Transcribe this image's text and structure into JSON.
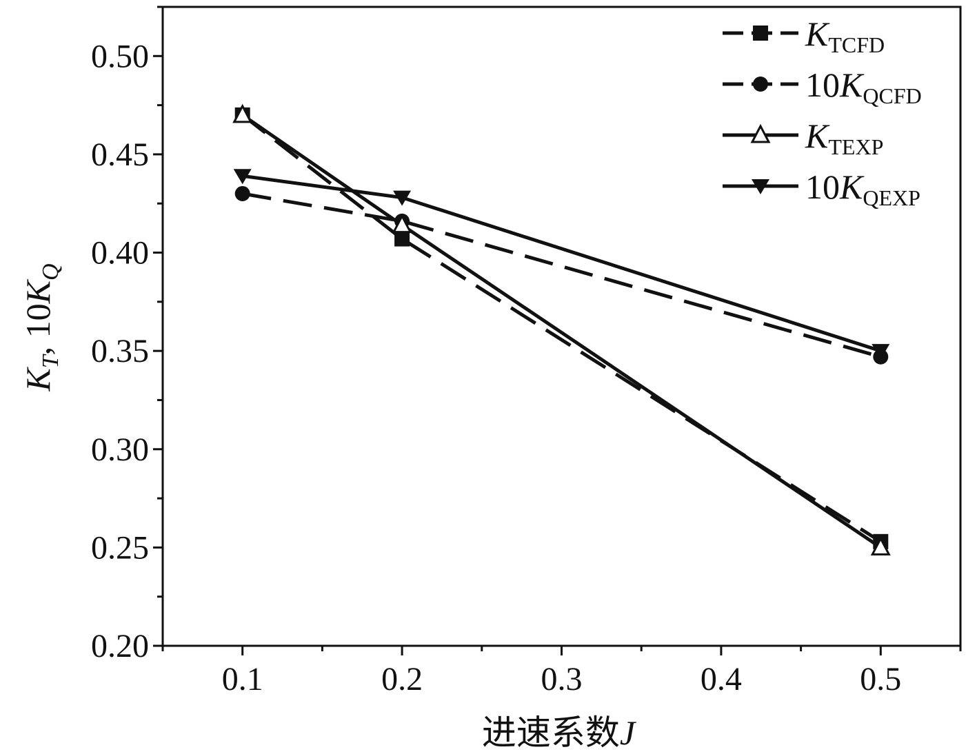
{
  "chart_data": {
    "type": "line",
    "title": "",
    "xlabel_text": "进速系数",
    "xlabel_var": "J",
    "ylabel_parts": [
      {
        "text": "K",
        "italic": true,
        "sub": false
      },
      {
        "text": "T",
        "italic": true,
        "sub": true
      },
      {
        "text": ", 10",
        "italic": false,
        "sub": false
      },
      {
        "text": "K",
        "italic": true,
        "sub": false
      },
      {
        "text": "Q",
        "italic": true,
        "sub": true
      }
    ],
    "xlim": [
      0.05,
      0.55
    ],
    "ylim": [
      0.2,
      0.525
    ],
    "xticks": [
      0.1,
      0.2,
      0.3,
      0.4,
      0.5
    ],
    "xtick_labels": [
      "0.1",
      "0.2",
      "0.3",
      "0.4",
      "0.5"
    ],
    "yticks": [
      0.2,
      0.25,
      0.3,
      0.35,
      0.4,
      0.45,
      0.5
    ],
    "ytick_labels": [
      "0.20",
      "0.25",
      "0.30",
      "0.35",
      "0.40",
      "0.45",
      "0.50"
    ],
    "grid": false,
    "legend_position": "top-right",
    "series": [
      {
        "name_prefix": "",
        "name_var": "K",
        "name_sub": "TCFD",
        "marker": "square",
        "dash": true,
        "x": [
          0.1,
          0.2,
          0.5
        ],
        "y": [
          0.47,
          0.407,
          0.253
        ]
      },
      {
        "name_prefix": "10",
        "name_var": "K",
        "name_sub": "QCFD",
        "marker": "circle",
        "dash": true,
        "x": [
          0.1,
          0.2,
          0.5
        ],
        "y": [
          0.43,
          0.416,
          0.347
        ]
      },
      {
        "name_prefix": "",
        "name_var": "K",
        "name_sub": "TEXP",
        "marker": "triangle-up-open",
        "dash": false,
        "x": [
          0.1,
          0.2,
          0.5
        ],
        "y": [
          0.47,
          0.414,
          0.25
        ]
      },
      {
        "name_prefix": "10",
        "name_var": "K",
        "name_sub": "QEXP",
        "marker": "triangle-down",
        "dash": false,
        "x": [
          0.1,
          0.2,
          0.5
        ],
        "y": [
          0.439,
          0.428,
          0.35
        ]
      }
    ]
  }
}
